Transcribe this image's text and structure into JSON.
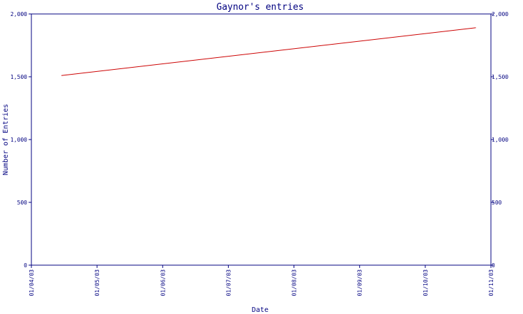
{
  "chart_data": {
    "type": "line",
    "title": "Gaynor's entries",
    "xlabel": "Date",
    "ylabel": "Number of Entries",
    "ylim": [
      0,
      2000
    ],
    "yticks": [
      {
        "value": 0,
        "label": "0"
      },
      {
        "value": 500,
        "label": "500"
      },
      {
        "value": 1000,
        "label": "1,000"
      },
      {
        "value": 1500,
        "label": "1,500"
      },
      {
        "value": 2000,
        "label": "2,000"
      }
    ],
    "xticks": [
      "01/04/03",
      "01/05/03",
      "01/06/03",
      "01/07/03",
      "01/08/03",
      "01/09/03",
      "01/10/03",
      "01/11/03"
    ],
    "xlim": [
      "2003-04-01",
      "2003-11-01"
    ],
    "series": [
      {
        "x": [
          "2003-04-15",
          "2003-10-25"
        ],
        "y": [
          1510,
          1890
        ]
      }
    ],
    "grid": false,
    "colors": {
      "axis": "#000080",
      "text": "#000080",
      "line": "#cc0000"
    }
  }
}
